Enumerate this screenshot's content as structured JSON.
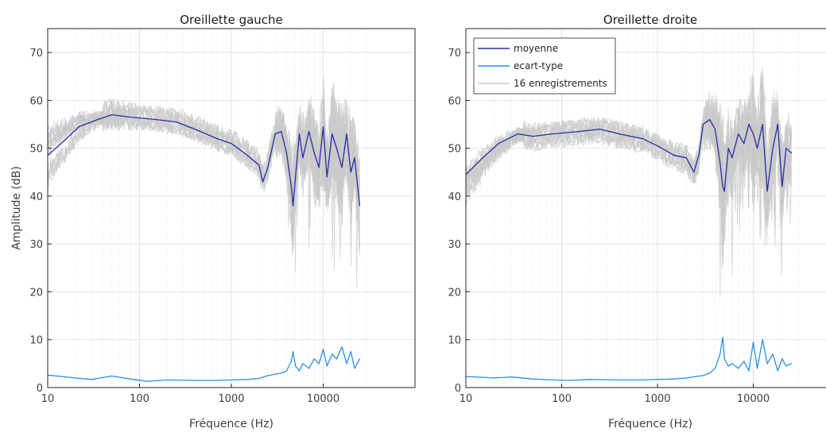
{
  "colors": {
    "mean": "#2b2ba8",
    "std": "#2a8fe6",
    "recording": "#c9c9c9",
    "grid": "#e6e6e6",
    "axis": "#262626"
  },
  "legend": {
    "placement": "top-left",
    "entries": [
      {
        "label": "moyenne",
        "color": "#2b2ba8"
      },
      {
        "label": "ecart-type",
        "color": "#2a8fe6"
      },
      {
        "label": "16 enregistrements",
        "color": "#c9c9c9"
      }
    ]
  },
  "chart_data": [
    {
      "type": "line",
      "title": "Oreillette gauche",
      "xlabel": "Fréquence (Hz)",
      "ylabel": "Amplitude (dB)",
      "x_scale": "log",
      "xlim": [
        10,
        25000
      ],
      "ylim": [
        0,
        75
      ],
      "xticks": [
        "10",
        "100",
        "1000",
        "10000"
      ],
      "yticks": [
        "0",
        "10",
        "20",
        "30",
        "40",
        "50",
        "60",
        "70"
      ],
      "grid": true,
      "recordings_count": 16,
      "series": [
        {
          "name": "moyenne",
          "x": [
            10,
            15,
            22,
            35,
            50,
            80,
            150,
            250,
            400,
            700,
            1000,
            1500,
            2000,
            2200,
            2500,
            3000,
            3500,
            4000,
            4500,
            4700,
            5000,
            5500,
            6000,
            7000,
            8000,
            9000,
            10000,
            11000,
            12500,
            14000,
            16000,
            18000,
            20000,
            22000,
            25000
          ],
          "y": [
            48.5,
            51.5,
            54.5,
            56.0,
            57.0,
            56.5,
            56.0,
            55.5,
            54.0,
            52.0,
            51.0,
            48.5,
            46.5,
            43.0,
            46.0,
            53.0,
            53.5,
            49.0,
            42.0,
            38.0,
            44.0,
            53.0,
            48.0,
            53.5,
            49.0,
            46.0,
            54.5,
            44.0,
            53.0,
            50.0,
            46.0,
            53.0,
            45.0,
            48.0,
            38.0
          ]
        },
        {
          "name": "ecart-type",
          "x": [
            10,
            20,
            30,
            50,
            80,
            120,
            200,
            400,
            700,
            1000,
            1500,
            2000,
            2500,
            3000,
            3500,
            4000,
            4500,
            4700,
            5000,
            5500,
            6000,
            7000,
            8000,
            9000,
            10000,
            11000,
            12500,
            14000,
            16000,
            18000,
            20000,
            22000,
            25000
          ],
          "y": [
            2.6,
            2.0,
            1.7,
            2.4,
            1.8,
            1.3,
            1.6,
            1.5,
            1.5,
            1.6,
            1.7,
            1.9,
            2.5,
            2.8,
            3.0,
            3.5,
            5.5,
            7.5,
            4.5,
            3.5,
            5.0,
            4.0,
            6.0,
            5.0,
            8.0,
            4.5,
            7.0,
            6.0,
            8.5,
            5.0,
            7.5,
            4.0,
            6.0
          ]
        }
      ]
    },
    {
      "type": "line",
      "title": "Oreillette droite",
      "xlabel": "Fréquence (Hz)",
      "ylabel": "",
      "x_scale": "log",
      "xlim": [
        10,
        25000
      ],
      "ylim": [
        0,
        75
      ],
      "xticks": [
        "10",
        "100",
        "1000",
        "10000"
      ],
      "yticks": [
        "0",
        "10",
        "20",
        "30",
        "40",
        "50",
        "60",
        "70"
      ],
      "grid": true,
      "recordings_count": 16,
      "series": [
        {
          "name": "moyenne",
          "x": [
            10,
            15,
            22,
            35,
            50,
            80,
            150,
            250,
            400,
            700,
            1000,
            1500,
            2000,
            2400,
            2700,
            3000,
            3500,
            4000,
            4500,
            4800,
            5000,
            5500,
            6000,
            7000,
            8000,
            9000,
            10000,
            11000,
            12500,
            14000,
            16000,
            18000,
            20000,
            22000,
            25000
          ],
          "y": [
            44.5,
            48.0,
            51.0,
            53.0,
            52.5,
            53.0,
            53.5,
            54.0,
            53.0,
            52.0,
            50.5,
            48.5,
            48.0,
            45.0,
            48.5,
            55.0,
            56.0,
            54.0,
            47.0,
            42.0,
            41.0,
            50.0,
            48.0,
            53.0,
            51.0,
            55.0,
            53.0,
            50.0,
            55.0,
            41.0,
            50.0,
            55.0,
            42.0,
            50.0,
            49.0
          ]
        },
        {
          "name": "ecart-type",
          "x": [
            10,
            20,
            30,
            50,
            80,
            120,
            200,
            400,
            700,
            1000,
            1500,
            2000,
            2500,
            3000,
            3500,
            4000,
            4500,
            4800,
            5000,
            5500,
            6000,
            7000,
            8000,
            9000,
            10000,
            11000,
            12500,
            14000,
            16000,
            18000,
            20000,
            22000,
            25000
          ],
          "y": [
            2.3,
            2.0,
            2.2,
            1.8,
            1.6,
            1.5,
            1.7,
            1.6,
            1.6,
            1.7,
            1.8,
            2.0,
            2.3,
            2.5,
            3.0,
            4.0,
            7.0,
            10.5,
            6.0,
            4.5,
            5.0,
            4.0,
            5.5,
            3.5,
            9.5,
            4.0,
            10.0,
            5.0,
            7.0,
            3.5,
            6.0,
            4.5,
            5.0
          ]
        }
      ]
    }
  ]
}
